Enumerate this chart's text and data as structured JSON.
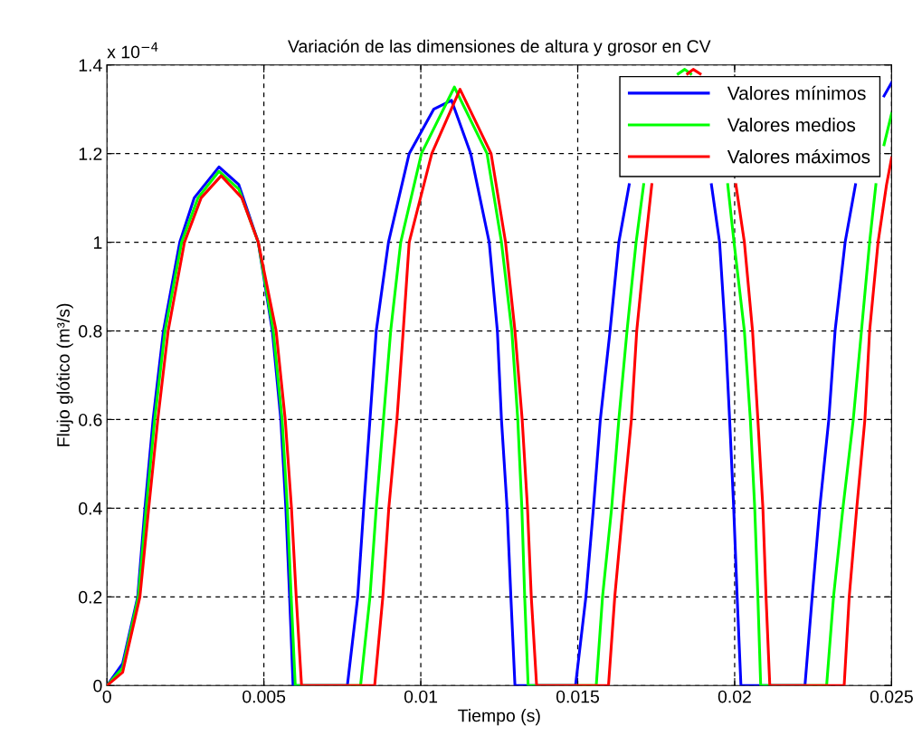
{
  "chart_data": {
    "type": "line",
    "title": "Variación de las dimensiones de altura y grosor en CV",
    "xlabel": "Tiempo (s)",
    "ylabel": "Flujo glótico (m³/s)",
    "annotations": [
      "x 10$^{−4}$"
    ],
    "xlim": [
      0,
      0.025
    ],
    "xticks": [
      0,
      0.005,
      0.01,
      0.015,
      0.02,
      0.025
    ],
    "ylim": [
      0,
      1.4
    ],
    "yticks": [
      0,
      0.2,
      0.4,
      0.6,
      0.8,
      1,
      1.2,
      1.4
    ],
    "grid": true,
    "legend": "top right",
    "line_style": "solid",
    "marker": "none",
    "series": [
      {
        "name": "Valores mínimos",
        "color": "#0000ff",
        "x": [
          0,
          0.0005,
          0.00098,
          0.00121,
          0.00147,
          0.0018,
          0.00232,
          0.00278,
          0.00357,
          0.0042,
          0.00482,
          0.00527,
          0.00554,
          0.0057,
          0.00582,
          0.00593,
          0.00766,
          0.00799,
          0.00818,
          0.00838,
          0.00858,
          0.00897,
          0.00963,
          0.01041,
          0.01098,
          0.01159,
          0.01218,
          0.01244,
          0.01257,
          0.01275,
          0.01287,
          0.013,
          0.01493,
          0.01526,
          0.0155,
          0.01572,
          0.01603,
          0.01631,
          0.01664,
          0.0175,
          0.01926,
          0.01952,
          0.0197,
          0.01984,
          0.01997,
          0.02008,
          0.0202,
          0.02224,
          0.02247,
          0.02271,
          0.023,
          0.0232,
          0.02352,
          0.02385,
          0.0245,
          0.02476,
          0.025
        ],
        "values": [
          0,
          0.05,
          0.2,
          0.4,
          0.6,
          0.8,
          1.0,
          1.1,
          1.17,
          1.13,
          1.0,
          0.8,
          0.6,
          0.4,
          0.2,
          0,
          0,
          0.2,
          0.4,
          0.6,
          0.8,
          1.0,
          1.2,
          1.3,
          1.32,
          1.2,
          1.0,
          0.8,
          0.6,
          0.4,
          0.2,
          0,
          0,
          0.2,
          0.4,
          0.6,
          0.8,
          1.0,
          1.13,
          null,
          1.13,
          1.0,
          0.8,
          0.6,
          0.4,
          0.2,
          0,
          0,
          0.2,
          0.4,
          0.6,
          0.8,
          1.0,
          1.13,
          null,
          1.33,
          1.36
        ]
      },
      {
        "name": "Valores medios",
        "color": "#00ff00",
        "x": [
          0,
          0.0005,
          0.001,
          0.00125,
          0.00152,
          0.00185,
          0.00238,
          0.0029,
          0.00357,
          0.0042,
          0.00482,
          0.0053,
          0.00558,
          0.00575,
          0.00587,
          0.006,
          0.00808,
          0.00838,
          0.00858,
          0.00881,
          0.00904,
          0.00936,
          0.01002,
          0.01107,
          0.01211,
          0.01257,
          0.0129,
          0.01309,
          0.01322,
          0.01331,
          0.01342,
          0.01559,
          0.01579,
          0.01608,
          0.01631,
          0.01657,
          0.01686,
          0.0171,
          0.0176,
          0.0182,
          0.01841,
          0.0186,
          0.0192,
          0.01978,
          0.01998,
          0.02031,
          0.0205,
          0.02064,
          0.02074,
          0.02083,
          0.02293,
          0.02315,
          0.02345,
          0.02378,
          0.02404,
          0.0243,
          0.0245,
          0.0246,
          0.02476,
          0.025
        ],
        "values": [
          0,
          0.04,
          0.2,
          0.4,
          0.6,
          0.8,
          1.0,
          1.1,
          1.16,
          1.12,
          1.0,
          0.8,
          0.6,
          0.4,
          0.2,
          0,
          0,
          0.2,
          0.4,
          0.6,
          0.8,
          1.0,
          1.2,
          1.35,
          1.2,
          1.0,
          0.8,
          0.6,
          0.4,
          0.2,
          0,
          0,
          0.2,
          0.4,
          0.6,
          0.8,
          1.0,
          1.13,
          null,
          1.38,
          1.39,
          1.38,
          null,
          1.13,
          1.0,
          0.8,
          0.6,
          0.4,
          0.2,
          0,
          0,
          0.2,
          0.4,
          0.6,
          0.8,
          1.0,
          1.13,
          null,
          1.22,
          1.29
        ]
      },
      {
        "name": "Valores máximos",
        "color": "#ff0000",
        "x": [
          0,
          0.0005,
          0.00105,
          0.00133,
          0.00162,
          0.00195,
          0.00247,
          0.003,
          0.00364,
          0.0043,
          0.00482,
          0.00539,
          0.00568,
          0.00588,
          0.00603,
          0.0062,
          0.00853,
          0.00879,
          0.00898,
          0.00924,
          0.00944,
          0.00963,
          0.01035,
          0.01125,
          0.01224,
          0.0127,
          0.013,
          0.01323,
          0.0134,
          0.01352,
          0.01369,
          0.01598,
          0.01618,
          0.01644,
          0.01671,
          0.01688,
          0.01716,
          0.01736,
          0.0179,
          0.0185,
          0.01868,
          0.0189,
          0.0195,
          0.02004,
          0.02031,
          0.02057,
          0.02074,
          0.0209,
          0.021,
          0.02112,
          0.02349,
          0.02365,
          0.02389,
          0.02415,
          0.0243,
          0.02457,
          0.02484,
          0.025
        ],
        "values": [
          0,
          0.03,
          0.2,
          0.4,
          0.6,
          0.8,
          1.0,
          1.1,
          1.15,
          1.1,
          1.0,
          0.8,
          0.6,
          0.4,
          0.2,
          0,
          0,
          0.2,
          0.4,
          0.6,
          0.8,
          1.0,
          1.2,
          1.345,
          1.2,
          1.0,
          0.8,
          0.6,
          0.4,
          0.2,
          0,
          0,
          0.2,
          0.4,
          0.6,
          0.8,
          1.0,
          1.13,
          null,
          1.38,
          1.39,
          1.38,
          null,
          1.13,
          1.0,
          0.8,
          0.6,
          0.4,
          0.2,
          0,
          0,
          0.2,
          0.4,
          0.6,
          0.8,
          1.0,
          1.13,
          1.19
        ]
      }
    ]
  }
}
